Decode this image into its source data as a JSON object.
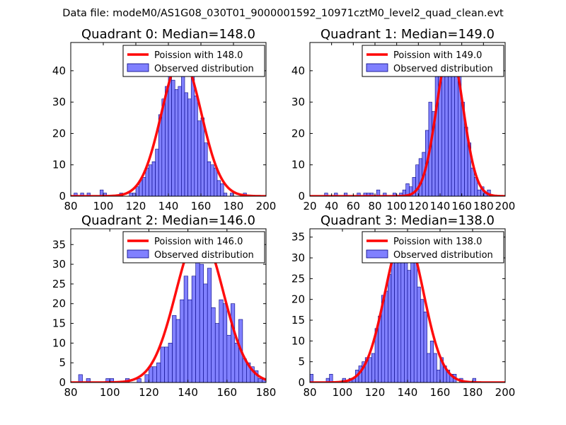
{
  "suptitle": "Data file: modeM0/AS1G08_030T01_9000001592_10971cztM0_level2_quad_clean.evt",
  "colors": {
    "bar_fill": "#8080ff",
    "bar_edge": "#000080",
    "line": "#ff0000",
    "axes": "#000000"
  },
  "chart_data": [
    {
      "type": "bar",
      "title": "Quadrant 0: Median=148.0",
      "xlim": [
        80,
        200
      ],
      "ylim": [
        0,
        49
      ],
      "xticks": [
        "80",
        "100",
        "120",
        "140",
        "160",
        "180",
        "200"
      ],
      "xtick_values": [
        80,
        100,
        120,
        140,
        160,
        180,
        200
      ],
      "yticks": [
        "0",
        "10",
        "20",
        "30",
        "40"
      ],
      "ytick_values": [
        0,
        10,
        20,
        30,
        40
      ],
      "bin_width": 2,
      "legend": {
        "line": "Poission with 148.0",
        "bars": "Observed distribution",
        "loc": "upper right"
      },
      "bars": [
        [
          83,
          1
        ],
        [
          87,
          1
        ],
        [
          91,
          1
        ],
        [
          99,
          2
        ],
        [
          101,
          1
        ],
        [
          111,
          1
        ],
        [
          117,
          1
        ],
        [
          119,
          1
        ],
        [
          121,
          3
        ],
        [
          123,
          5
        ],
        [
          125,
          6
        ],
        [
          127,
          9
        ],
        [
          129,
          10
        ],
        [
          131,
          11
        ],
        [
          133,
          15
        ],
        [
          135,
          26
        ],
        [
          137,
          31
        ],
        [
          139,
          35
        ],
        [
          141,
          43
        ],
        [
          143,
          37
        ],
        [
          145,
          34
        ],
        [
          147,
          35
        ],
        [
          149,
          42
        ],
        [
          151,
          33
        ],
        [
          153,
          31
        ],
        [
          155,
          44
        ],
        [
          157,
          32
        ],
        [
          159,
          24
        ],
        [
          161,
          25
        ],
        [
          163,
          17
        ],
        [
          165,
          11
        ],
        [
          167,
          10
        ],
        [
          169,
          9
        ],
        [
          171,
          5
        ],
        [
          173,
          4
        ],
        [
          175,
          1
        ],
        [
          179,
          1
        ],
        [
          187,
          1
        ]
      ],
      "curve": {
        "mean": 148,
        "peak": 44
      }
    },
    {
      "type": "bar",
      "title": "Quadrant 1: Median=149.0",
      "xlim": [
        20,
        200
      ],
      "ylim": [
        0,
        49
      ],
      "xticks": [
        "20",
        "40",
        "60",
        "80",
        "100",
        "120",
        "140",
        "160",
        "180",
        "200"
      ],
      "xtick_values": [
        20,
        40,
        60,
        80,
        100,
        120,
        140,
        160,
        180,
        200
      ],
      "yticks": [
        "0",
        "10",
        "20",
        "30",
        "40"
      ],
      "ytick_values": [
        0,
        10,
        20,
        30,
        40
      ],
      "bin_width": 3,
      "legend": {
        "line": "Poission with 149.0",
        "bars": "Observed distribution",
        "loc": "upper right"
      },
      "bars": [
        [
          35,
          1
        ],
        [
          44,
          1
        ],
        [
          53,
          1
        ],
        [
          65,
          1
        ],
        [
          71,
          1
        ],
        [
          74,
          1
        ],
        [
          77,
          1
        ],
        [
          83,
          2
        ],
        [
          89,
          1
        ],
        [
          98,
          1
        ],
        [
          104,
          1
        ],
        [
          107,
          2
        ],
        [
          110,
          4
        ],
        [
          113,
          3
        ],
        [
          116,
          6
        ],
        [
          119,
          10
        ],
        [
          122,
          12
        ],
        [
          125,
          14
        ],
        [
          128,
          21
        ],
        [
          131,
          30
        ],
        [
          134,
          27
        ],
        [
          137,
          39
        ],
        [
          140,
          43
        ],
        [
          143,
          45
        ],
        [
          146,
          44
        ],
        [
          149,
          47
        ],
        [
          152,
          46
        ],
        [
          155,
          41
        ],
        [
          158,
          43
        ],
        [
          161,
          30
        ],
        [
          164,
          22
        ],
        [
          167,
          17
        ],
        [
          170,
          9
        ],
        [
          173,
          6
        ],
        [
          176,
          2
        ],
        [
          179,
          3
        ],
        [
          182,
          1
        ],
        [
          185,
          2
        ]
      ],
      "curve": {
        "mean": 149,
        "peak": 47
      }
    },
    {
      "type": "bar",
      "title": "Quadrant 2: Median=146.0",
      "xlim": [
        80,
        180
      ],
      "ylim": [
        0,
        39
      ],
      "xticks": [
        "80",
        "100",
        "120",
        "140",
        "160",
        "180"
      ],
      "xtick_values": [
        80,
        100,
        120,
        140,
        160,
        180
      ],
      "yticks": [
        "0",
        "5",
        "10",
        "15",
        "20",
        "25",
        "30",
        "35"
      ],
      "ytick_values": [
        0,
        5,
        10,
        15,
        20,
        25,
        30,
        35
      ],
      "bin_width": 2,
      "legend": {
        "line": "Poission with 146.0",
        "bars": "Observed distribution",
        "loc": "upper right"
      },
      "bars": [
        [
          85,
          2
        ],
        [
          89,
          1
        ],
        [
          99,
          1
        ],
        [
          101,
          1
        ],
        [
          109,
          1
        ],
        [
          115,
          1
        ],
        [
          119,
          2
        ],
        [
          121,
          4
        ],
        [
          123,
          4
        ],
        [
          125,
          5
        ],
        [
          127,
          9
        ],
        [
          129,
          9
        ],
        [
          131,
          10
        ],
        [
          133,
          17
        ],
        [
          135,
          16
        ],
        [
          137,
          21
        ],
        [
          139,
          27
        ],
        [
          141,
          21
        ],
        [
          143,
          27
        ],
        [
          145,
          38
        ],
        [
          147,
          30
        ],
        [
          149,
          25
        ],
        [
          151,
          29
        ],
        [
          153,
          19
        ],
        [
          155,
          15
        ],
        [
          157,
          21
        ],
        [
          159,
          20
        ],
        [
          161,
          12
        ],
        [
          163,
          20
        ],
        [
          165,
          10
        ],
        [
          167,
          16
        ],
        [
          169,
          6
        ],
        [
          171,
          5
        ],
        [
          173,
          4
        ],
        [
          175,
          3
        ],
        [
          177,
          1
        ],
        [
          179,
          1
        ]
      ],
      "curve": {
        "mean": 146,
        "peak": 38
      }
    },
    {
      "type": "bar",
      "title": "Quadrant 3: Median=138.0",
      "xlim": [
        80,
        200
      ],
      "ylim": [
        0,
        37
      ],
      "xticks": [
        "80",
        "100",
        "120",
        "140",
        "160",
        "180",
        "200"
      ],
      "xtick_values": [
        80,
        100,
        120,
        140,
        160,
        180,
        200
      ],
      "yticks": [
        "0",
        "5",
        "10",
        "15",
        "20",
        "25",
        "30",
        "35"
      ],
      "ytick_values": [
        0,
        5,
        10,
        15,
        20,
        25,
        30,
        35
      ],
      "bin_width": 2,
      "legend": {
        "line": "Poission with 138.0",
        "bars": "Observed distribution",
        "loc": "upper right"
      },
      "bars": [
        [
          81,
          2
        ],
        [
          91,
          1
        ],
        [
          93,
          2
        ],
        [
          101,
          1
        ],
        [
          105,
          1
        ],
        [
          107,
          1
        ],
        [
          109,
          3
        ],
        [
          111,
          4
        ],
        [
          113,
          5
        ],
        [
          115,
          6
        ],
        [
          117,
          6
        ],
        [
          119,
          7
        ],
        [
          121,
          13
        ],
        [
          123,
          16
        ],
        [
          125,
          21
        ],
        [
          127,
          22
        ],
        [
          129,
          26
        ],
        [
          131,
          32
        ],
        [
          133,
          35
        ],
        [
          135,
          31
        ],
        [
          137,
          35
        ],
        [
          139,
          34
        ],
        [
          141,
          27
        ],
        [
          143,
          32
        ],
        [
          145,
          29
        ],
        [
          147,
          23
        ],
        [
          149,
          20
        ],
        [
          151,
          17
        ],
        [
          153,
          7
        ],
        [
          155,
          10
        ],
        [
          157,
          7
        ],
        [
          159,
          3
        ],
        [
          161,
          6
        ],
        [
          163,
          4
        ],
        [
          165,
          3
        ],
        [
          167,
          2
        ],
        [
          169,
          2
        ],
        [
          173,
          1
        ],
        [
          181,
          1
        ]
      ],
      "curve": {
        "mean": 138,
        "peak": 36
      }
    }
  ]
}
